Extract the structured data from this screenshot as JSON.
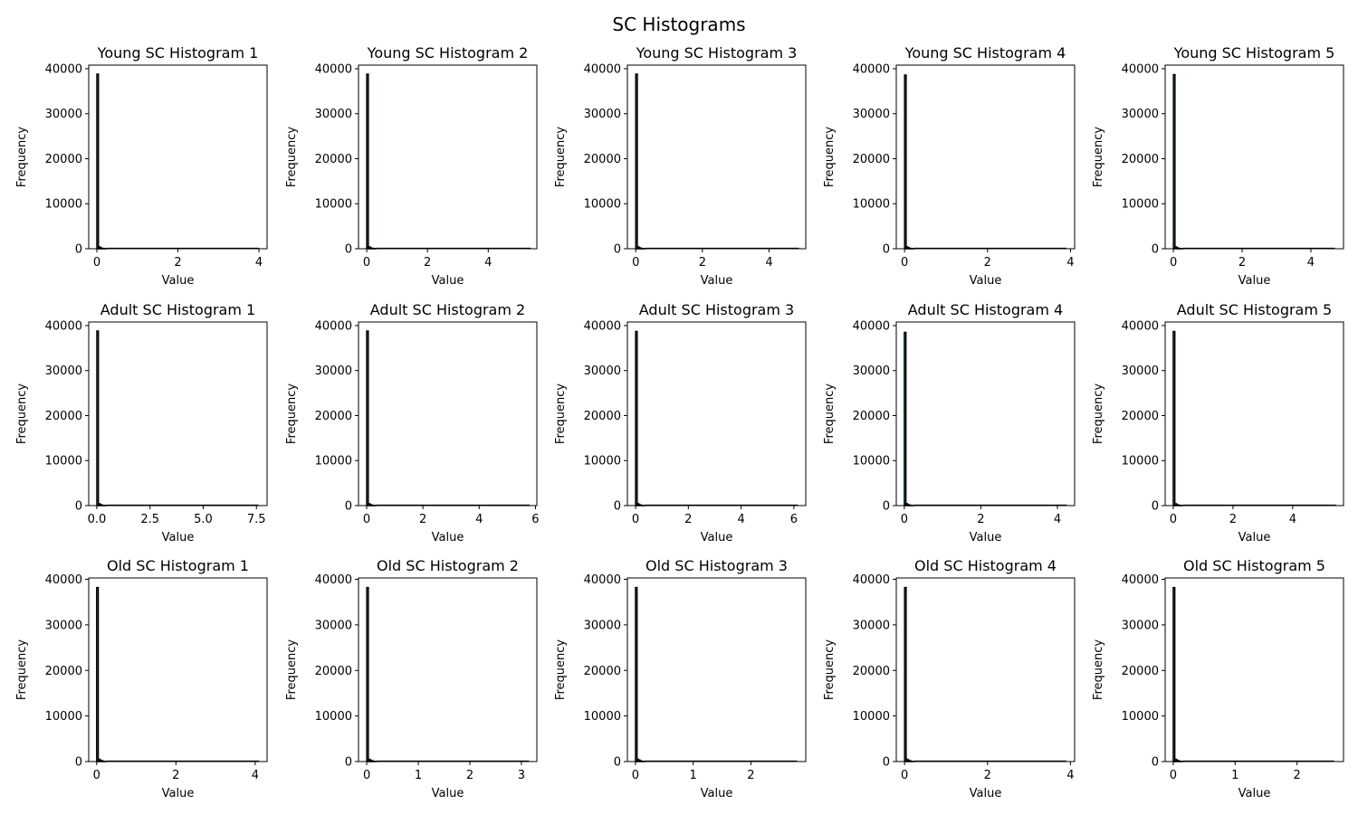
{
  "figure": {
    "title": "SC Histograms"
  },
  "colors": {
    "bar_fill": "#1f77b4",
    "bar_edge": "#000000",
    "axes": "#000000",
    "background": "#ffffff"
  },
  "chart_data": [
    {
      "type": "bar",
      "title": "Young SC Histogram 1",
      "xlabel": "Value",
      "ylabel": "Frequency",
      "xlim": [
        -0.2,
        4.2
      ],
      "ylim": [
        0,
        40800
      ],
      "xticks": [
        0,
        2,
        4
      ],
      "xtick_labels": [
        "0",
        "2",
        "4"
      ],
      "yticks": [
        0,
        10000,
        20000,
        30000,
        40000
      ],
      "ytick_labels": [
        "0",
        "10000",
        "20000",
        "30000",
        "40000"
      ],
      "x_max": 4.0,
      "values": [
        38800,
        420,
        210,
        90,
        40,
        20
      ],
      "grid": false
    },
    {
      "type": "bar",
      "title": "Young SC Histogram 2",
      "xlabel": "Value",
      "ylabel": "Frequency",
      "xlim": [
        -0.27,
        5.6
      ],
      "ylim": [
        0,
        40800
      ],
      "xticks": [
        0,
        2,
        4
      ],
      "xtick_labels": [
        "0",
        "2",
        "4"
      ],
      "yticks": [
        0,
        10000,
        20000,
        30000,
        40000
      ],
      "ytick_labels": [
        "0",
        "10000",
        "20000",
        "30000",
        "40000"
      ],
      "x_max": 5.4,
      "values": [
        38800,
        420,
        210,
        90,
        40,
        20
      ],
      "grid": false
    },
    {
      "type": "bar",
      "title": "Young SC Histogram 3",
      "xlabel": "Value",
      "ylabel": "Frequency",
      "xlim": [
        -0.25,
        5.1
      ],
      "ylim": [
        0,
        40800
      ],
      "xticks": [
        0,
        2,
        4
      ],
      "xtick_labels": [
        "0",
        "2",
        "4"
      ],
      "yticks": [
        0,
        10000,
        20000,
        30000,
        40000
      ],
      "ytick_labels": [
        "0",
        "10000",
        "20000",
        "30000",
        "40000"
      ],
      "x_max": 4.9,
      "values": [
        38800,
        420,
        210,
        90,
        40,
        20
      ],
      "grid": false
    },
    {
      "type": "bar",
      "title": "Young SC Histogram 4",
      "xlabel": "Value",
      "ylabel": "Frequency",
      "xlim": [
        -0.2,
        4.1
      ],
      "ylim": [
        0,
        40800
      ],
      "xticks": [
        0,
        2,
        4
      ],
      "xtick_labels": [
        "0",
        "2",
        "4"
      ],
      "yticks": [
        0,
        10000,
        20000,
        30000,
        40000
      ],
      "ytick_labels": [
        "0",
        "10000",
        "20000",
        "30000",
        "40000"
      ],
      "x_max": 3.9,
      "values": [
        38600,
        420,
        210,
        90,
        40,
        20
      ],
      "grid": false
    },
    {
      "type": "bar",
      "title": "Young SC Histogram 5",
      "xlabel": "Value",
      "ylabel": "Frequency",
      "xlim": [
        -0.24,
        4.95
      ],
      "ylim": [
        0,
        40800
      ],
      "xticks": [
        0,
        2,
        4
      ],
      "xtick_labels": [
        "0",
        "2",
        "4"
      ],
      "yticks": [
        0,
        10000,
        20000,
        30000,
        40000
      ],
      "ytick_labels": [
        "0",
        "10000",
        "20000",
        "30000",
        "40000"
      ],
      "x_max": 4.7,
      "values": [
        38700,
        420,
        210,
        90,
        40,
        20
      ],
      "grid": false
    },
    {
      "type": "bar",
      "title": "Adult SC Histogram 1",
      "xlabel": "Value",
      "ylabel": "Frequency",
      "xlim": [
        -0.38,
        8.0
      ],
      "ylim": [
        0,
        40800
      ],
      "xticks": [
        0,
        2.5,
        5,
        7.5
      ],
      "xtick_labels": [
        "0.0",
        "2.5",
        "5.0",
        "7.5"
      ],
      "yticks": [
        0,
        10000,
        20000,
        30000,
        40000
      ],
      "ytick_labels": [
        "0",
        "10000",
        "20000",
        "30000",
        "40000"
      ],
      "x_max": 7.6,
      "values": [
        38800,
        420,
        210,
        90,
        40,
        20
      ],
      "grid": false
    },
    {
      "type": "bar",
      "title": "Adult SC Histogram 2",
      "xlabel": "Value",
      "ylabel": "Frequency",
      "xlim": [
        -0.29,
        6.05
      ],
      "ylim": [
        0,
        40800
      ],
      "xticks": [
        0,
        2,
        4,
        6
      ],
      "xtick_labels": [
        "0",
        "2",
        "4",
        "6"
      ],
      "yticks": [
        0,
        10000,
        20000,
        30000,
        40000
      ],
      "ytick_labels": [
        "0",
        "10000",
        "20000",
        "30000",
        "40000"
      ],
      "x_max": 5.8,
      "values": [
        38800,
        420,
        210,
        90,
        40,
        20
      ],
      "grid": false
    },
    {
      "type": "bar",
      "title": "Adult SC Histogram 3",
      "xlabel": "Value",
      "ylabel": "Frequency",
      "xlim": [
        -0.31,
        6.45
      ],
      "ylim": [
        0,
        40800
      ],
      "xticks": [
        0,
        2,
        4,
        6
      ],
      "xtick_labels": [
        "0",
        "2",
        "4",
        "6"
      ],
      "yticks": [
        0,
        10000,
        20000,
        30000,
        40000
      ],
      "ytick_labels": [
        "0",
        "10000",
        "20000",
        "30000",
        "40000"
      ],
      "x_max": 6.15,
      "values": [
        38700,
        420,
        210,
        90,
        40,
        20
      ],
      "grid": false
    },
    {
      "type": "bar",
      "title": "Adult SC Histogram 4",
      "xlabel": "Value",
      "ylabel": "Frequency",
      "xlim": [
        -0.21,
        4.45
      ],
      "ylim": [
        0,
        40800
      ],
      "xticks": [
        0,
        2,
        4
      ],
      "xtick_labels": [
        "0",
        "2",
        "4"
      ],
      "yticks": [
        0,
        10000,
        20000,
        30000,
        40000
      ],
      "ytick_labels": [
        "0",
        "10000",
        "20000",
        "30000",
        "40000"
      ],
      "x_max": 4.25,
      "values": [
        38500,
        420,
        210,
        90,
        40,
        20
      ],
      "grid": false
    },
    {
      "type": "bar",
      "title": "Adult SC Histogram 5",
      "xlabel": "Value",
      "ylabel": "Frequency",
      "xlim": [
        -0.27,
        5.7
      ],
      "ylim": [
        0,
        40800
      ],
      "xticks": [
        0,
        2,
        4
      ],
      "xtick_labels": [
        "0",
        "2",
        "4"
      ],
      "yticks": [
        0,
        10000,
        20000,
        30000,
        40000
      ],
      "ytick_labels": [
        "0",
        "10000",
        "20000",
        "30000",
        "40000"
      ],
      "x_max": 5.45,
      "values": [
        38700,
        420,
        210,
        90,
        40,
        20
      ],
      "grid": false
    },
    {
      "type": "bar",
      "title": "Old SC Histogram 1",
      "xlabel": "Value",
      "ylabel": "Frequency",
      "xlim": [
        -0.2,
        4.3
      ],
      "ylim": [
        0,
        40300
      ],
      "xticks": [
        0,
        2,
        4
      ],
      "xtick_labels": [
        "0",
        "2",
        "4"
      ],
      "yticks": [
        0,
        10000,
        20000,
        30000,
        40000
      ],
      "ytick_labels": [
        "0",
        "10000",
        "20000",
        "30000",
        "40000"
      ],
      "x_max": 4.1,
      "values": [
        38200,
        500,
        300,
        150,
        60,
        25
      ],
      "grid": false
    },
    {
      "type": "bar",
      "title": "Old SC Histogram 2",
      "xlabel": "Value",
      "ylabel": "Frequency",
      "xlim": [
        -0.16,
        3.3
      ],
      "ylim": [
        0,
        40300
      ],
      "xticks": [
        0,
        1,
        2,
        3
      ],
      "xtick_labels": [
        "0",
        "1",
        "2",
        "3"
      ],
      "yticks": [
        0,
        10000,
        20000,
        30000,
        40000
      ],
      "ytick_labels": [
        "0",
        "10000",
        "20000",
        "30000",
        "40000"
      ],
      "x_max": 3.15,
      "values": [
        38200,
        500,
        300,
        150,
        60,
        25
      ],
      "grid": false
    },
    {
      "type": "bar",
      "title": "Old SC Histogram 3",
      "xlabel": "Value",
      "ylabel": "Frequency",
      "xlim": [
        -0.14,
        2.95
      ],
      "ylim": [
        0,
        40300
      ],
      "xticks": [
        0,
        1,
        2
      ],
      "xtick_labels": [
        "0",
        "1",
        "2"
      ],
      "yticks": [
        0,
        10000,
        20000,
        30000,
        40000
      ],
      "ytick_labels": [
        "0",
        "10000",
        "20000",
        "30000",
        "40000"
      ],
      "x_max": 2.8,
      "values": [
        38200,
        500,
        300,
        150,
        60,
        25
      ],
      "grid": false
    },
    {
      "type": "bar",
      "title": "Old SC Histogram 4",
      "xlabel": "Value",
      "ylabel": "Frequency",
      "xlim": [
        -0.2,
        4.1
      ],
      "ylim": [
        0,
        40300
      ],
      "xticks": [
        0,
        2,
        4
      ],
      "xtick_labels": [
        "0",
        "2",
        "4"
      ],
      "yticks": [
        0,
        10000,
        20000,
        30000,
        40000
      ],
      "ytick_labels": [
        "0",
        "10000",
        "20000",
        "30000",
        "40000"
      ],
      "x_max": 3.9,
      "values": [
        38200,
        500,
        300,
        150,
        60,
        25
      ],
      "grid": false
    },
    {
      "type": "bar",
      "title": "Old SC Histogram 5",
      "xlabel": "Value",
      "ylabel": "Frequency",
      "xlim": [
        -0.13,
        2.75
      ],
      "ylim": [
        0,
        40300
      ],
      "xticks": [
        0,
        1,
        2
      ],
      "xtick_labels": [
        "0",
        "1",
        "2"
      ],
      "yticks": [
        0,
        10000,
        20000,
        30000,
        40000
      ],
      "ytick_labels": [
        "0",
        "10000",
        "20000",
        "30000",
        "40000"
      ],
      "x_max": 2.6,
      "values": [
        38200,
        500,
        300,
        150,
        60,
        25
      ],
      "grid": false
    }
  ]
}
